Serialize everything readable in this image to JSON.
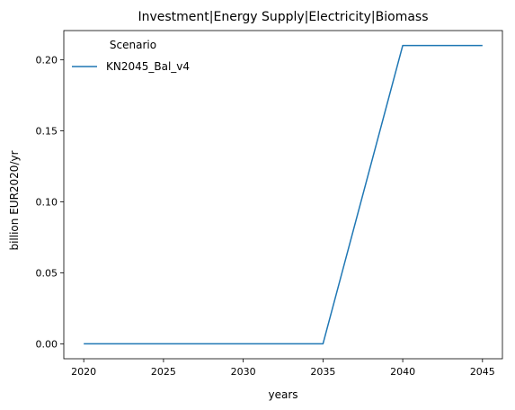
{
  "chart_data": {
    "type": "line",
    "title": "Investment|Energy Supply|Electricity|Biomass",
    "xlabel": "years",
    "ylabel": "billion EUR2020/yr",
    "x": [
      2020,
      2025,
      2030,
      2035,
      2040,
      2045
    ],
    "series": [
      {
        "name": "KN2045_Bal_v4",
        "color": "#1f77b4",
        "values": [
          0.0,
          0.0,
          0.0,
          0.0,
          0.21,
          0.21
        ]
      }
    ],
    "xlim": [
      2018.75,
      2046.25
    ],
    "ylim": [
      -0.0105,
      0.2205
    ],
    "xticks": [
      2020,
      2025,
      2030,
      2035,
      2040,
      2045
    ],
    "yticks": [
      0.0,
      0.05,
      0.1,
      0.15,
      0.2
    ],
    "ytick_labels": [
      "0.00",
      "0.05",
      "0.10",
      "0.15",
      "0.20"
    ],
    "grid": false,
    "legend": {
      "title": "Scenario",
      "placement": "top-left"
    }
  }
}
